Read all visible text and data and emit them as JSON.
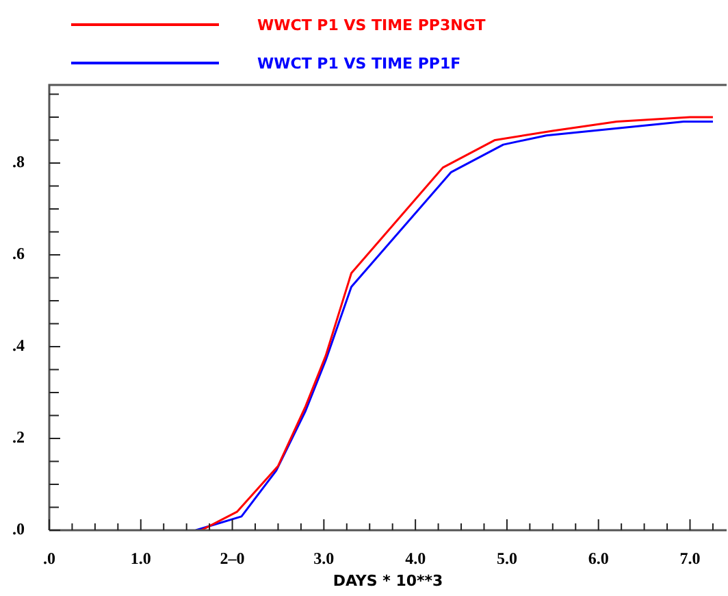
{
  "chart_data": {
    "type": "line",
    "xlabel": "DAYS * 10**3",
    "legend": "top",
    "grid": false,
    "marker": "none",
    "line_style": "solid",
    "xlim": [
      0,
      7.4
    ],
    "ylim": [
      0,
      0.97
    ],
    "xticks": [
      {
        "value": 0,
        "label": ".0"
      },
      {
        "value": 0.25,
        "label": null
      },
      {
        "value": 0.5,
        "label": null
      },
      {
        "value": 0.75,
        "label": null
      },
      {
        "value": 1,
        "label": "1.0"
      },
      {
        "value": 1.25,
        "label": null
      },
      {
        "value": 1.5,
        "label": null
      },
      {
        "value": 1.75,
        "label": null
      },
      {
        "value": 2,
        "label": "2–0"
      },
      {
        "value": 2.25,
        "label": null
      },
      {
        "value": 2.5,
        "label": null
      },
      {
        "value": 2.75,
        "label": null
      },
      {
        "value": 3,
        "label": "3.0"
      },
      {
        "value": 3.25,
        "label": null
      },
      {
        "value": 3.5,
        "label": null
      },
      {
        "value": 3.75,
        "label": null
      },
      {
        "value": 4,
        "label": "4.0"
      },
      {
        "value": 4.25,
        "label": null
      },
      {
        "value": 4.5,
        "label": null
      },
      {
        "value": 4.75,
        "label": null
      },
      {
        "value": 5,
        "label": "5.0"
      },
      {
        "value": 5.25,
        "label": null
      },
      {
        "value": 5.5,
        "label": null
      },
      {
        "value": 5.75,
        "label": null
      },
      {
        "value": 6,
        "label": "6.0"
      },
      {
        "value": 6.25,
        "label": null
      },
      {
        "value": 6.5,
        "label": null
      },
      {
        "value": 6.75,
        "label": null
      },
      {
        "value": 7,
        "label": "7.0"
      },
      {
        "value": 7.25,
        "label": null
      }
    ],
    "yticks": [
      {
        "value": 0,
        "label": ".0"
      },
      {
        "value": 0.05,
        "label": null
      },
      {
        "value": 0.1,
        "label": null
      },
      {
        "value": 0.15,
        "label": null
      },
      {
        "value": 0.2,
        "label": ".2"
      },
      {
        "value": 0.25,
        "label": null
      },
      {
        "value": 0.3,
        "label": null
      },
      {
        "value": 0.35,
        "label": null
      },
      {
        "value": 0.4,
        "label": ".4"
      },
      {
        "value": 0.45,
        "label": null
      },
      {
        "value": 0.5,
        "label": null
      },
      {
        "value": 0.55,
        "label": null
      },
      {
        "value": 0.6,
        "label": ".6"
      },
      {
        "value": 0.65,
        "label": null
      },
      {
        "value": 0.7,
        "label": null
      },
      {
        "value": 0.75,
        "label": null
      },
      {
        "value": 0.8,
        "label": ".8"
      },
      {
        "value": 0.85,
        "label": null
      },
      {
        "value": 0.9,
        "label": null
      },
      {
        "value": 0.95,
        "label": null
      }
    ],
    "series": [
      {
        "name": "WWCT P1 VS TIME PP3NGT",
        "color": "#ff0000",
        "x": [
          1.66,
          2.05,
          2.5,
          2.8,
          3.02,
          3.3,
          4.3,
          4.87,
          5.5,
          6.2,
          7.0,
          7.25
        ],
        "values": [
          0,
          0.04,
          0.14,
          0.27,
          0.38,
          0.56,
          0.79,
          0.85,
          0.87,
          0.89,
          0.9,
          0.9
        ]
      },
      {
        "name": "WWCT P1 VS TIME PP1F",
        "color": "#0000ff",
        "x": [
          1.6,
          2.1,
          2.48,
          2.8,
          3.02,
          3.3,
          4.39,
          4.96,
          5.43,
          6.93,
          7.25
        ],
        "values": [
          0,
          0.03,
          0.13,
          0.26,
          0.37,
          0.53,
          0.78,
          0.84,
          0.86,
          0.89,
          0.89
        ]
      }
    ]
  }
}
